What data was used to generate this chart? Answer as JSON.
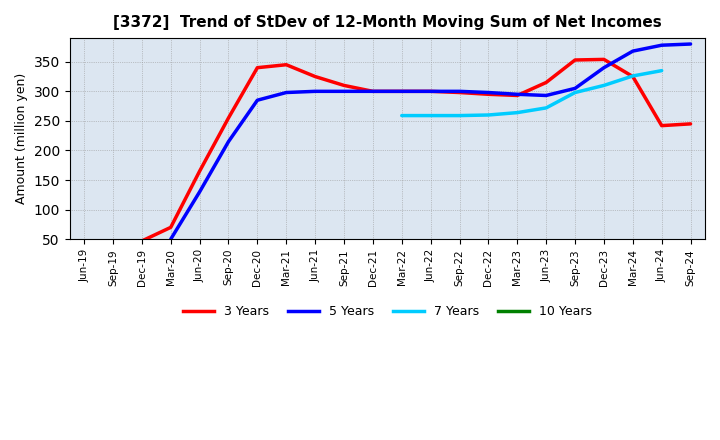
{
  "title": "[3372]  Trend of StDev of 12-Month Moving Sum of Net Incomes",
  "ylabel": "Amount (million yen)",
  "background_color": "#dce6f1",
  "x_labels": [
    "Jun-19",
    "Sep-19",
    "Dec-19",
    "Mar-20",
    "Jun-20",
    "Sep-20",
    "Dec-20",
    "Mar-21",
    "Jun-21",
    "Sep-21",
    "Dec-21",
    "Mar-22",
    "Jun-22",
    "Sep-22",
    "Dec-22",
    "Mar-23",
    "Jun-23",
    "Sep-23",
    "Dec-23",
    "Mar-24",
    "Jun-24",
    "Sep-24"
  ],
  "series": {
    "3 Years": {
      "color": "#ff0000",
      "data_x": [
        0,
        1,
        2,
        3,
        4,
        5,
        6,
        7,
        8,
        9,
        10,
        11,
        12,
        13,
        14,
        15,
        16,
        17,
        18,
        19,
        20,
        21
      ],
      "data_y": [
        47,
        46,
        47,
        70,
        165,
        255,
        340,
        345,
        325,
        310,
        300,
        300,
        300,
        298,
        295,
        293,
        315,
        353,
        354,
        325,
        242,
        245
      ]
    },
    "5 Years": {
      "color": "#0000ff",
      "data_x": [
        3,
        4,
        5,
        6,
        7,
        8,
        9,
        10,
        11,
        12,
        13,
        14,
        15,
        16,
        17,
        18,
        19,
        20,
        21
      ],
      "data_y": [
        50,
        130,
        215,
        285,
        298,
        300,
        300,
        300,
        300,
        300,
        300,
        298,
        295,
        293,
        305,
        340,
        368,
        378,
        380
      ]
    },
    "7 Years": {
      "color": "#00ccff",
      "data_x": [
        11,
        12,
        13,
        14,
        15,
        16,
        17,
        18,
        19,
        20
      ],
      "data_y": [
        259,
        259,
        259,
        260,
        264,
        272,
        298,
        310,
        326,
        335
      ]
    },
    "10 Years": {
      "color": "#008000",
      "data_x": [],
      "data_y": []
    }
  },
  "ylim": [
    50,
    390
  ],
  "yticks": [
    50,
    100,
    150,
    200,
    250,
    300,
    350
  ],
  "legend_labels": [
    "3 Years",
    "5 Years",
    "7 Years",
    "10 Years"
  ],
  "legend_colors": [
    "#ff0000",
    "#0000ff",
    "#00ccff",
    "#008000"
  ]
}
